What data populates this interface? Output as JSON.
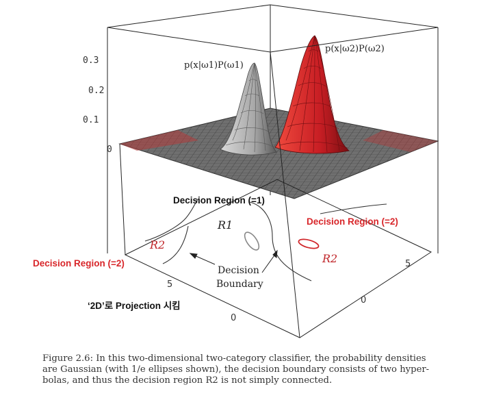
{
  "figure": {
    "density_labels": {
      "class1": "p(x|ω1)P(ω1)",
      "class2": "p(x|ω2)P(ω2)"
    },
    "z_ticks": [
      "0.3",
      "0.2",
      "0.1",
      "0"
    ],
    "x_ticks": [
      "5",
      "0"
    ],
    "y_ticks": [
      "5",
      "0"
    ],
    "region_labels": {
      "r1": "R1",
      "r2_left": "R2",
      "r2_right": "R2"
    },
    "boundary_label_line1": "Decision",
    "boundary_label_line2": "Boundary",
    "colors": {
      "class1": "#9a9a9a",
      "class2": "#d0262a",
      "annotation_red": "#d8262a"
    }
  },
  "annotations": {
    "region1": "Decision Region (=1)",
    "region2_right": "Decision Region (=2)",
    "region2_left": "Decision Region (=2)",
    "projection": "‘2D’로 Projection 시킴"
  },
  "caption": {
    "line1": "Figure 2.6: In this two-dimensional two-category classifier, the probability densities",
    "line2": "are Gaussian (with 1/e ellipses shown), the decision boundary consists of two hyper-",
    "line3": "bolas, and thus the decision region R2 is not simply connected."
  }
}
